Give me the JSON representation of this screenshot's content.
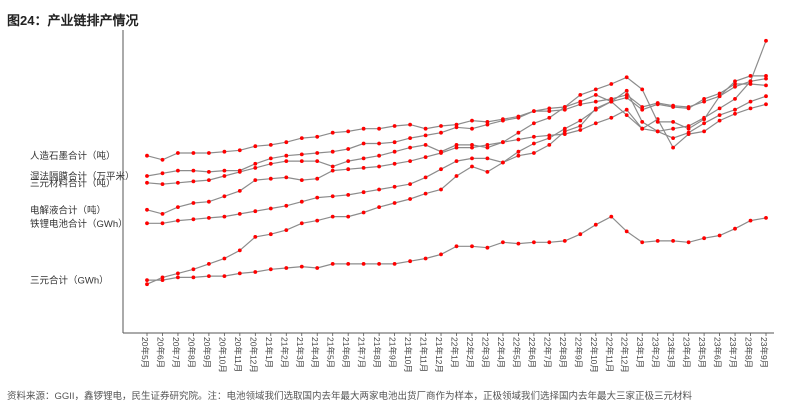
{
  "figure": {
    "title": "图24：产业链排产情况",
    "footer": "资料来源：GGII，鑫锣锂电，民生证券研究院。注：电池领域我们选取国内去年最大两家电池出货厂商作为样本，正极领域我们选择国内去年最大三家正极三元材料"
  },
  "colors": {
    "line": "#8c8c8c",
    "marker": "#ff0000",
    "axis": "#555555"
  },
  "chart_data": {
    "type": "line",
    "title": "图24：产业链排产情况",
    "xlabel": "",
    "ylabel": "",
    "grid": false,
    "legend": "none",
    "categories": [
      "20年5月",
      "20年6月",
      "20年7月",
      "20年8月",
      "20年9月",
      "20年10月",
      "20年11月",
      "20年12月",
      "21年1月",
      "21年2月",
      "21年3月",
      "21年4月",
      "21年5月",
      "21年6月",
      "21年7月",
      "21年8月",
      "21年9月",
      "21年10月",
      "21年11月",
      "21年12月",
      "22年1月",
      "22年2月",
      "22年3月",
      "22年4月",
      "22年5月",
      "22年6月",
      "22年7月",
      "22年8月",
      "22年9月",
      "22年10月",
      "22年11月",
      "22年12月",
      "23年1月",
      "23年2月",
      "23年3月",
      "23年4月",
      "23年5月",
      "23年6月",
      "23年7月",
      "23年8月",
      "23年9月"
    ],
    "series": [
      {
        "name": "",
        "values": [
          7.5,
          8.0,
          8.3,
          8.6,
          9.0,
          9.4,
          10.0,
          11.0,
          11.2,
          11.5,
          12.0,
          12.2,
          12.5,
          12.5,
          12.8,
          13.2,
          13.5,
          13.8,
          14.2,
          14.5,
          15.5,
          16.2,
          15.8,
          16.5,
          17.0,
          17.2,
          17.8,
          18.8,
          19.2,
          20.5,
          21.0,
          21.8,
          19.5,
          18.8,
          19.0,
          19.2,
          19.8,
          20.5,
          21.2,
          22.5,
          25.5
        ]
      },
      {
        "name": "电解液合计（吨）",
        "values": [
          13.0,
          12.7,
          13.2,
          13.5,
          13.6,
          14.0,
          14.4,
          15.2,
          15.3,
          15.4,
          15.2,
          15.3,
          15.9,
          16.0,
          16.1,
          16.2,
          16.4,
          16.6,
          16.9,
          17.2,
          17.6,
          17.6,
          17.8,
          18.0,
          18.2,
          18.4,
          18.5,
          18.6,
          18.9,
          19.4,
          19.8,
          20.4,
          19.0,
          19.7,
          17.6,
          18.6,
          18.8,
          19.6,
          20.1,
          20.5,
          20.8
        ]
      },
      {
        "name": "湿法隔膜合计（万平米）",
        "values": [
          15.5,
          15.7,
          15.9,
          15.9,
          15.8,
          15.9,
          15.9,
          16.4,
          16.8,
          17.0,
          17.1,
          17.2,
          17.3,
          17.5,
          17.9,
          17.9,
          18.0,
          18.3,
          18.5,
          18.7,
          19.1,
          19.0,
          19.3,
          19.6,
          19.8,
          20.3,
          20.3,
          20.4,
          20.8,
          21.0,
          21.2,
          21.5,
          20.6,
          20.9,
          20.7,
          20.6,
          21.0,
          21.4,
          22.1,
          22.5,
          22.7
        ]
      },
      {
        "name": "人造石墨合计（吨）",
        "values": [
          17.0,
          16.7,
          17.2,
          17.2,
          17.2,
          17.3,
          17.4,
          17.7,
          17.8,
          18.0,
          18.3,
          18.4,
          18.7,
          18.8,
          19.0,
          19.0,
          19.2,
          19.3,
          19.0,
          19.2,
          19.3,
          19.6,
          19.5,
          19.7,
          19.9,
          20.3,
          20.5,
          20.6,
          21.0,
          21.5,
          21.0,
          21.3,
          20.4,
          20.8,
          20.6,
          20.5,
          21.2,
          21.6,
          22.3,
          22.3,
          22.2
        ]
      },
      {
        "name": "三元材料合计（吨）",
        "values": [
          15.0,
          14.9,
          15.0,
          15.1,
          15.2,
          15.5,
          15.8,
          16.1,
          16.4,
          16.6,
          16.6,
          16.6,
          16.2,
          16.6,
          16.8,
          17.0,
          17.3,
          17.6,
          17.8,
          17.3,
          17.8,
          17.8,
          17.6,
          18.0,
          18.7,
          19.4,
          19.8,
          20.6,
          21.5,
          21.9,
          22.3,
          22.8,
          21.9,
          19.5,
          19.5,
          19.0,
          19.7,
          21.4,
          22.5,
          22.9,
          22.9
        ]
      },
      {
        "name": "铁锂电池合计（GWh）",
        "values": [
          12.0,
          12.0,
          12.2,
          12.3,
          12.4,
          12.5,
          12.7,
          12.9,
          13.1,
          13.3,
          13.6,
          13.9,
          14.0,
          14.1,
          14.3,
          14.5,
          14.7,
          14.9,
          15.4,
          16.0,
          16.6,
          16.8,
          16.8,
          16.5,
          17.3,
          17.9,
          18.3,
          19.0,
          19.6,
          20.4,
          21.0,
          20.0,
          19.0,
          18.8,
          18.3,
          18.7,
          19.4,
          20.0,
          20.4,
          21.0,
          21.4
        ]
      },
      {
        "name": "三元合计（GWh）",
        "values": [
          7.8,
          7.8,
          8.0,
          8.0,
          8.1,
          8.1,
          8.3,
          8.4,
          8.6,
          8.7,
          8.8,
          8.7,
          9.0,
          9.0,
          9.0,
          9.0,
          9.0,
          9.2,
          9.4,
          9.7,
          10.3,
          10.3,
          10.2,
          10.6,
          10.5,
          10.6,
          10.6,
          10.7,
          11.2,
          11.9,
          12.5,
          11.4,
          10.6,
          10.7,
          10.7,
          10.6,
          10.9,
          11.1,
          11.6,
          12.2,
          12.4
        ]
      }
    ]
  }
}
